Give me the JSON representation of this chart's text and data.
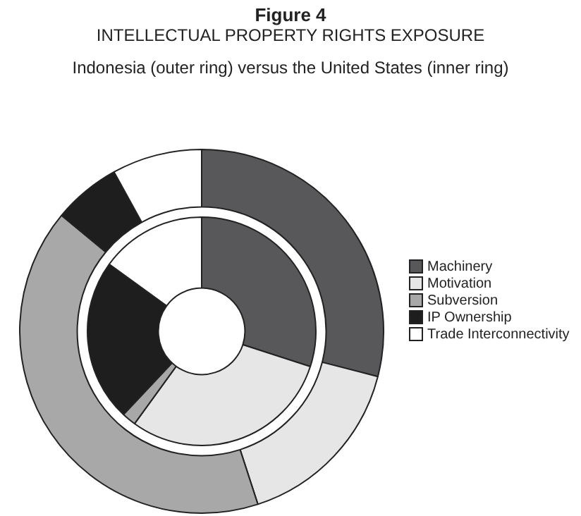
{
  "chart_data": {
    "type": "donut",
    "title": "Figure 4\nINTELLECTUAL PROPERTY RIGHTS EXPOSURE",
    "subtitle": "Indonesia (outer ring) versus the United States (inner ring)",
    "categories": [
      "Machinery",
      "Motivation",
      "Subversion",
      "IP Ownership",
      "Trade Interconnectivity"
    ],
    "colors": [
      "#58585a",
      "#e6e6e6",
      "#a8a8a8",
      "#1e1e1e",
      "#ffffff"
    ],
    "series": [
      {
        "values": [
          29,
          16,
          41,
          6,
          8
        ]
      },
      {
        "values": [
          30,
          30,
          2,
          23,
          15
        ]
      }
    ],
    "legend": "right"
  }
}
